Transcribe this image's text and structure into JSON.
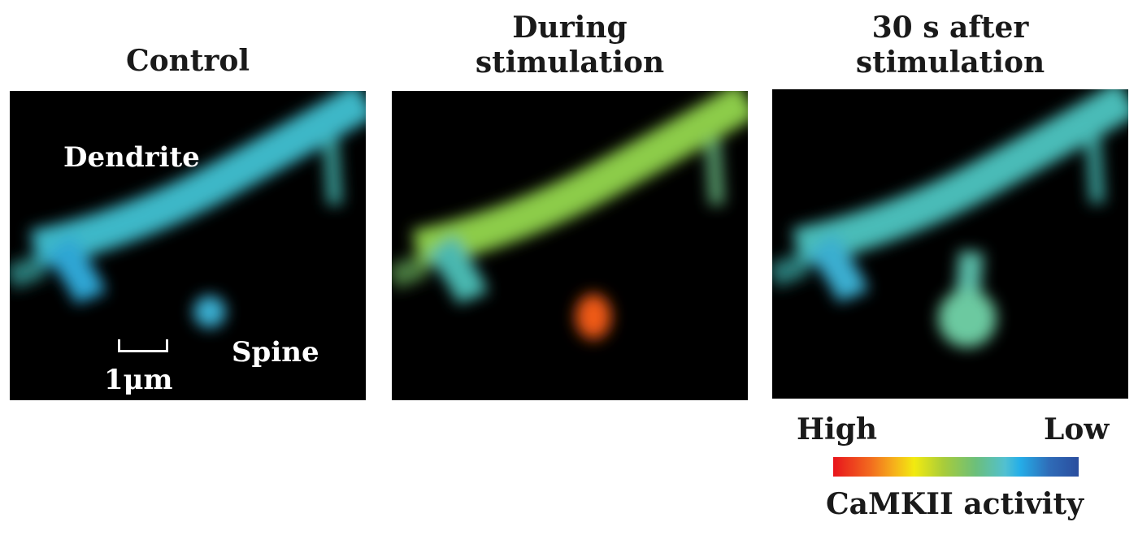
{
  "panels": [
    {
      "title_lines": [
        "Control"
      ],
      "spine_color": "#3aaed0"
    },
    {
      "title_lines": [
        "During",
        "stimulation"
      ],
      "spine_color": "#f05a18"
    },
    {
      "title_lines": [
        "30 s after",
        "stimulation"
      ],
      "spine_color": "#6cc9a0"
    }
  ],
  "annotations": {
    "dendrite": "Dendrite",
    "spine": "Spine",
    "scale": "1μm"
  },
  "colorbar": {
    "high": "High",
    "low": "Low",
    "label": "CaMKII activity",
    "colors": [
      "#e8141c",
      "#f6b21b",
      "#f2ea10",
      "#a8cc3a",
      "#52c0d0",
      "#25aee8",
      "#2a4d9e"
    ]
  },
  "colors": {
    "control_dendrite": "#3db8c8",
    "during_dendrite": "#8ccc48",
    "after_dendrite": "#48bcb8"
  }
}
